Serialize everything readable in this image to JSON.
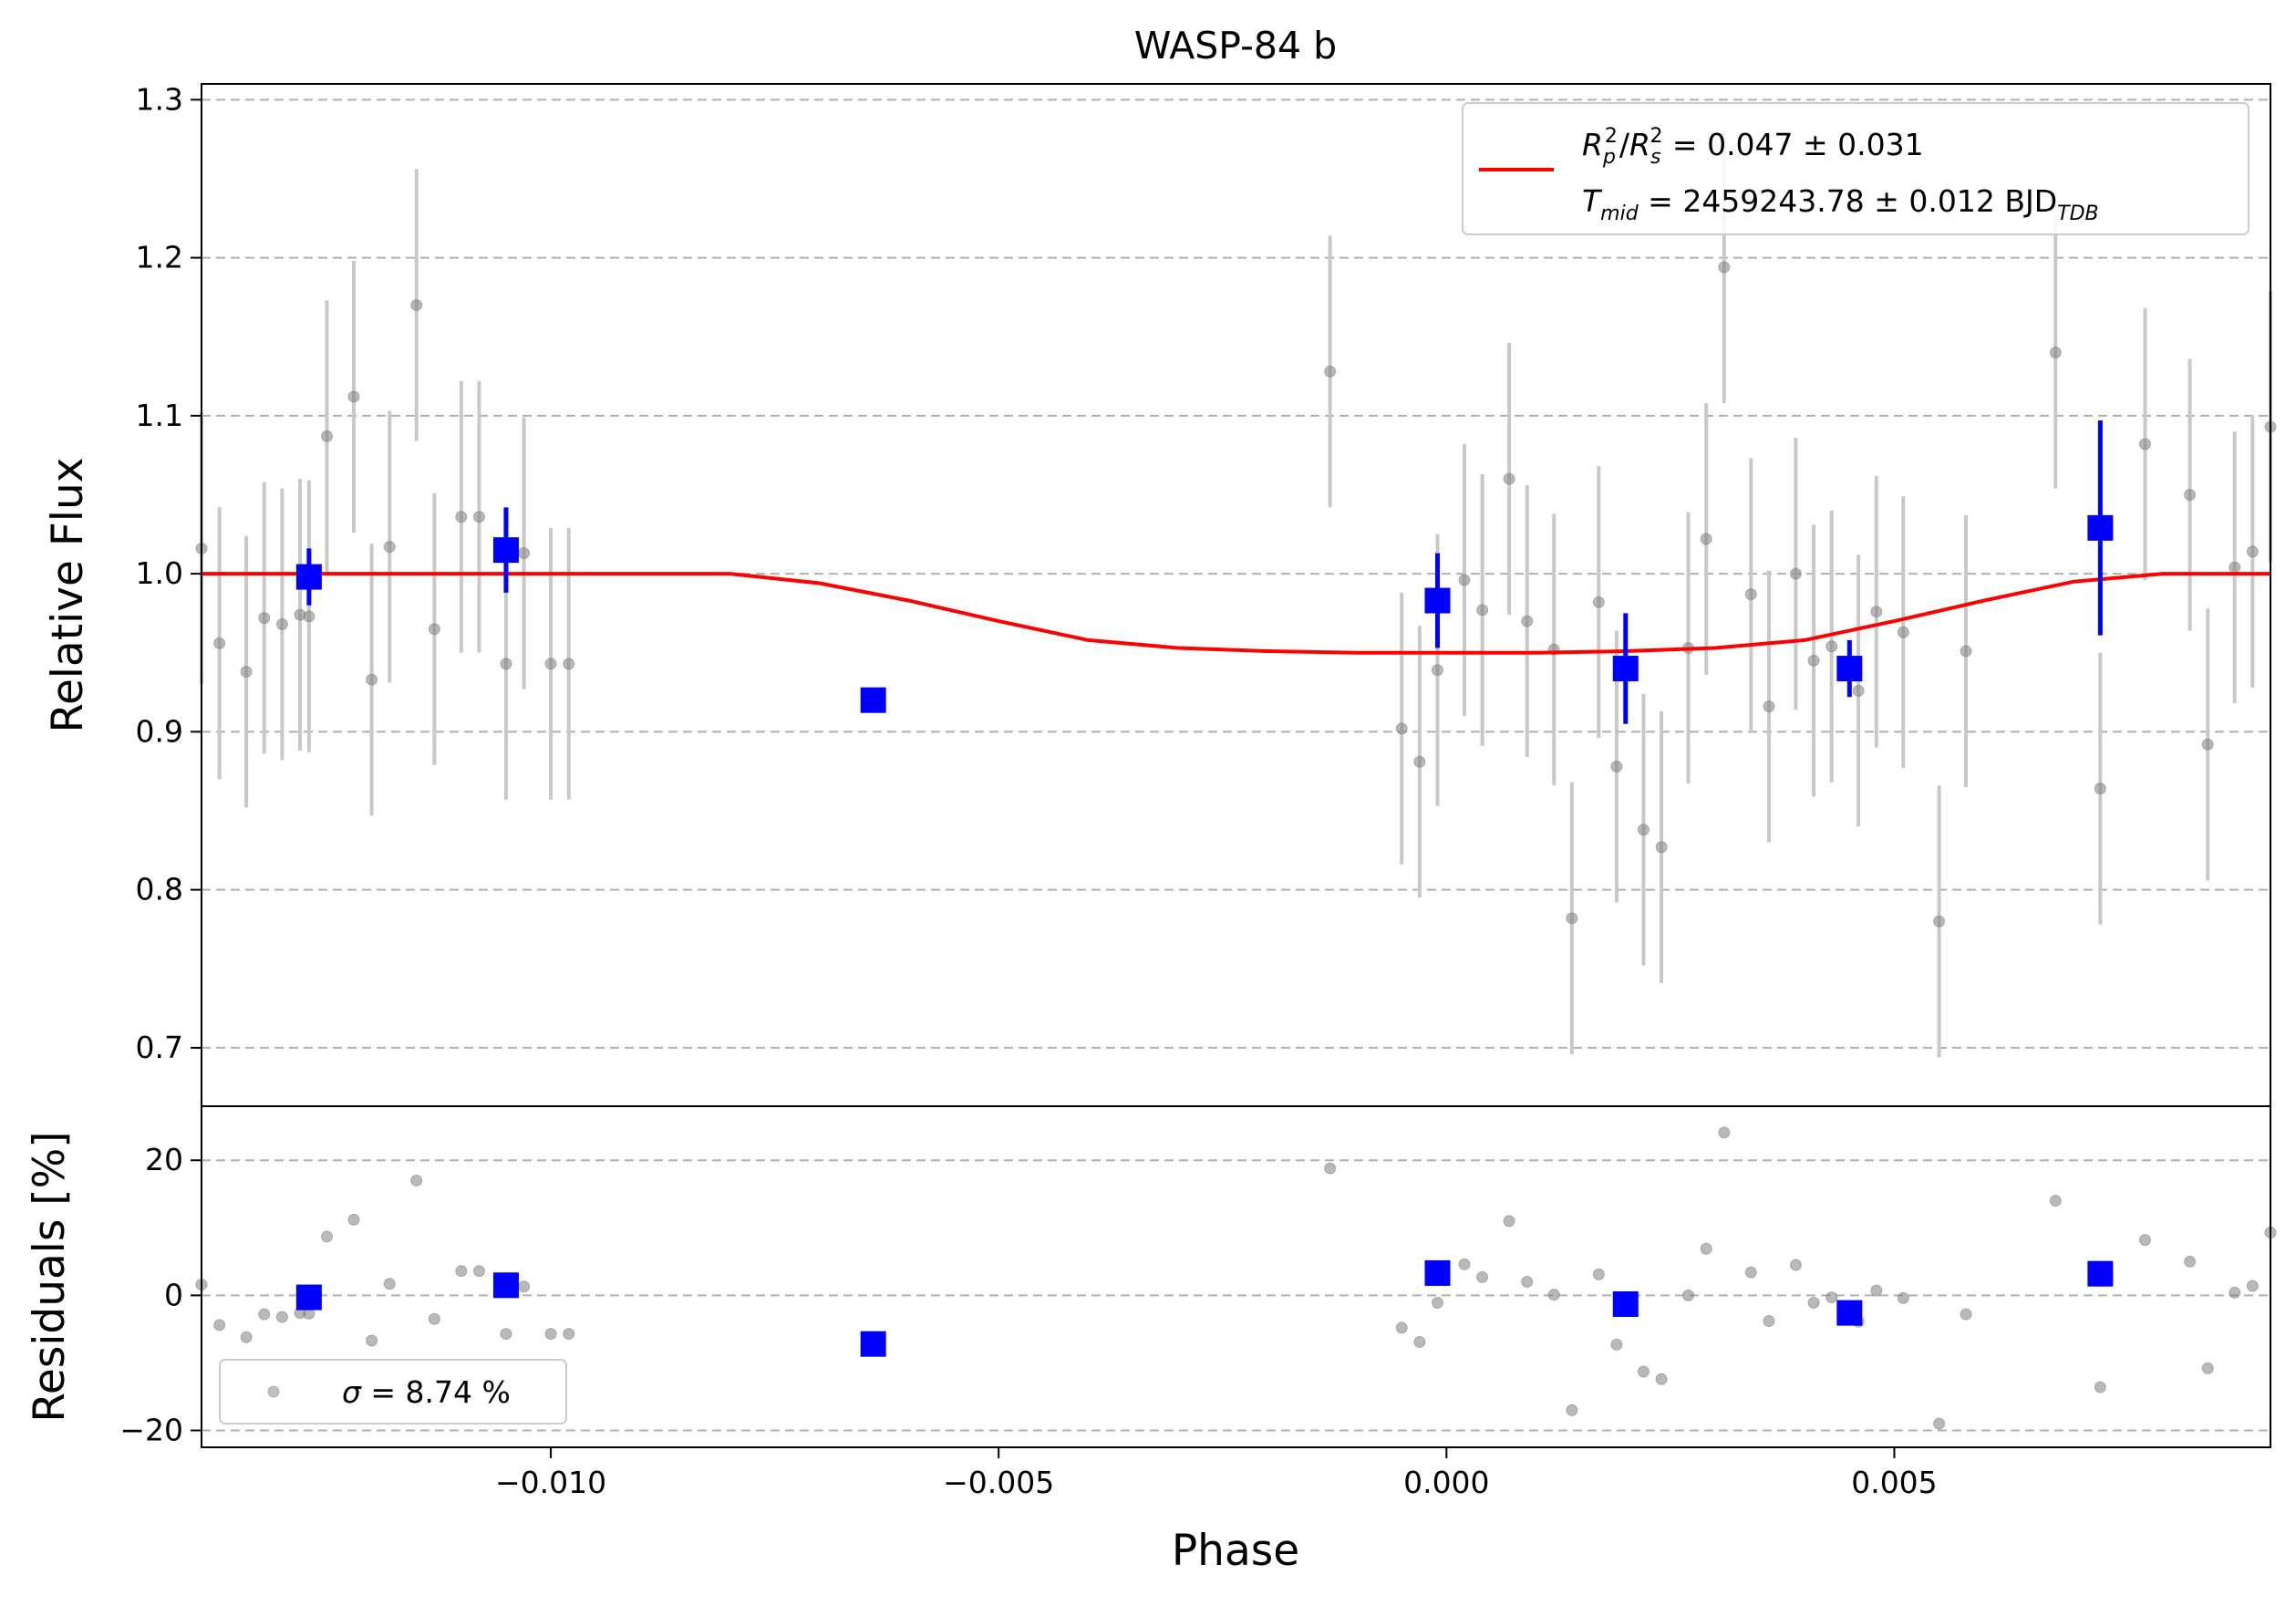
{
  "chart_data": {
    "type": "scatter",
    "title": "WASP-84 b",
    "xlabel": "Phase",
    "xlim": [
      -0.0139,
      0.0092
    ],
    "xticks": [
      -0.01,
      -0.005,
      0.0,
      0.005
    ],
    "xtick_labels": [
      "−0.010",
      "−0.005",
      "0.000",
      "0.005"
    ],
    "grid": "horizontal dashed",
    "panels": {
      "flux": {
        "ylabel": "Relative Flux",
        "ylim": [
          0.663,
          1.31
        ],
        "yticks": [
          0.7,
          0.8,
          0.9,
          1.0,
          1.1,
          1.2,
          1.3
        ],
        "ytick_labels": [
          "0.7",
          "0.8",
          "0.9",
          "1.0",
          "1.1",
          "1.2",
          "1.3"
        ]
      },
      "residuals": {
        "ylabel": "Residuals [%]",
        "ylim": [
          -22.5,
          28
        ],
        "yticks": [
          -20,
          0,
          20
        ],
        "ytick_labels": [
          "−20",
          "0",
          "20"
        ]
      }
    },
    "legend_flux": {
      "placement": "top-right",
      "line1_prefix": " = 0.047 ± 0.031",
      "line2_prefix": " = 2459243.78 ± 0.012 BJD",
      "rp": "R",
      "rp_sub": "p",
      "rp_sup": "2",
      "rs": "R",
      "rs_sub": "s",
      "rs_sup": "2",
      "tmid": "T",
      "tmid_sub": "mid",
      "tdb_sub": "TDB"
    },
    "legend_residuals": {
      "placement": "bottom-left",
      "sigma_symbol": "σ",
      "sigma_text": " = 8.74 %"
    },
    "model": {
      "color": "#ff0000",
      "depth": 0.05,
      "x": [
        -0.0139,
        -0.008,
        -0.007,
        -0.006,
        -0.005,
        -0.004,
        -0.003,
        -0.002,
        -0.001,
        0.0,
        0.001,
        0.002,
        0.003,
        0.004,
        0.005,
        0.006,
        0.007,
        0.008,
        0.0092
      ],
      "y": [
        1.0,
        1.0,
        0.994,
        0.983,
        0.97,
        0.958,
        0.953,
        0.951,
        0.95,
        0.95,
        0.95,
        0.951,
        0.953,
        0.958,
        0.97,
        0.983,
        0.995,
        1.0,
        1.0
      ]
    },
    "raw_points": {
      "color": "#808080",
      "errbar_color": "#c8c8c8",
      "x": [
        -0.0139,
        -0.0137,
        -0.0134,
        -0.0132,
        -0.013,
        -0.0128,
        -0.0127,
        -0.0125,
        -0.0122,
        -0.012,
        -0.0118,
        -0.0115,
        -0.0113,
        -0.011,
        -0.0108,
        -0.0105,
        -0.0103,
        -0.01,
        -0.0098,
        -0.0013,
        -0.0005,
        -0.0003,
        -0.0001,
        0.0002,
        0.0004,
        0.0007,
        0.0009,
        0.0012,
        0.0014,
        0.0017,
        0.0019,
        0.0022,
        0.0024,
        0.0027,
        0.0029,
        0.0031,
        0.0034,
        0.0036,
        0.0039,
        0.0041,
        0.0043,
        0.0046,
        0.0048,
        0.0051,
        0.0055,
        0.0058,
        0.0068,
        0.0073,
        0.0078,
        0.0083,
        0.0085,
        0.0088,
        0.009,
        0.0092
      ],
      "y": [
        1.016,
        0.956,
        0.938,
        0.972,
        0.968,
        0.974,
        0.973,
        1.087,
        1.112,
        0.933,
        1.017,
        1.17,
        0.965,
        1.036,
        1.036,
        0.943,
        1.013,
        0.943,
        0.943,
        1.128,
        0.902,
        0.881,
        0.939,
        0.996,
        0.977,
        1.06,
        0.97,
        0.952,
        0.782,
        0.982,
        0.878,
        0.838,
        0.827,
        0.953,
        1.022,
        1.194,
        0.987,
        0.916,
        1.0,
        0.945,
        0.954,
        0.926,
        0.976,
        0.963,
        0.78,
        0.951,
        1.14,
        0.864,
        1.082,
        1.05,
        0.892,
        1.004,
        1.014,
        1.093
      ],
      "err": [
        0.086,
        0.086,
        0.086,
        0.086,
        0.086,
        0.086,
        0.086,
        0.086,
        0.086,
        0.086,
        0.086,
        0.086,
        0.086,
        0.086,
        0.086,
        0.086,
        0.086,
        0.086,
        0.086,
        0.086,
        0.086,
        0.086,
        0.086,
        0.086,
        0.086,
        0.086,
        0.086,
        0.086,
        0.086,
        0.086,
        0.086,
        0.086,
        0.086,
        0.086,
        0.086,
        0.086,
        0.086,
        0.086,
        0.086,
        0.086,
        0.086,
        0.086,
        0.086,
        0.086,
        0.086,
        0.086,
        0.086,
        0.086,
        0.086,
        0.086,
        0.086,
        0.086,
        0.086,
        0.086
      ],
      "residuals": [
        1.6,
        -4.4,
        -6.2,
        -2.8,
        -3.2,
        -2.6,
        -2.7,
        8.7,
        11.2,
        -6.7,
        1.7,
        17.0,
        -3.5,
        3.6,
        3.6,
        -5.7,
        1.3,
        -5.7,
        -5.7,
        18.8,
        -4.8,
        -6.9,
        -1.1,
        4.6,
        2.7,
        11.0,
        2.0,
        0.1,
        -17.0,
        3.1,
        -7.3,
        -11.3,
        -12.4,
        0.0,
        6.9,
        24.1,
        3.4,
        -3.8,
        4.5,
        -1.1,
        -0.3,
        -3.9,
        0.7,
        -0.4,
        -19.0,
        -2.8,
        14.0,
        -13.6,
        8.2,
        5.0,
        -10.8,
        0.4,
        1.4,
        9.3
      ]
    },
    "binned_points": {
      "color": "#0000ff",
      "x": [
        -0.0127,
        -0.0105,
        -0.0064,
        -0.0001,
        0.002,
        0.0045,
        0.0073
      ],
      "y": [
        0.998,
        1.015,
        0.92,
        0.983,
        0.94,
        0.94,
        1.029
      ],
      "err": [
        0.018,
        0.027,
        0.0,
        0.03,
        0.035,
        0.018,
        0.068
      ],
      "residuals": [
        -0.3,
        1.5,
        -7.2,
        3.3,
        -1.3,
        -2.6,
        3.2
      ]
    }
  }
}
